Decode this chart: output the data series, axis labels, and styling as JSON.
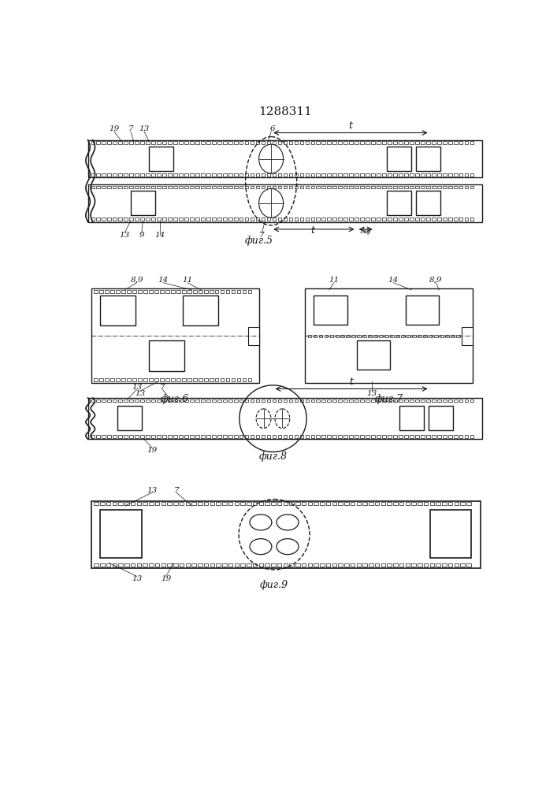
{
  "title": "1288311",
  "bg_color": "#ffffff",
  "line_color": "#1a1a1a",
  "fig5_label": "фиг.5",
  "fig6_label": "фиг.6",
  "fig7_label": "фиг.7",
  "fig8_label": "фиг.8",
  "fig9_label": "фиг.9"
}
